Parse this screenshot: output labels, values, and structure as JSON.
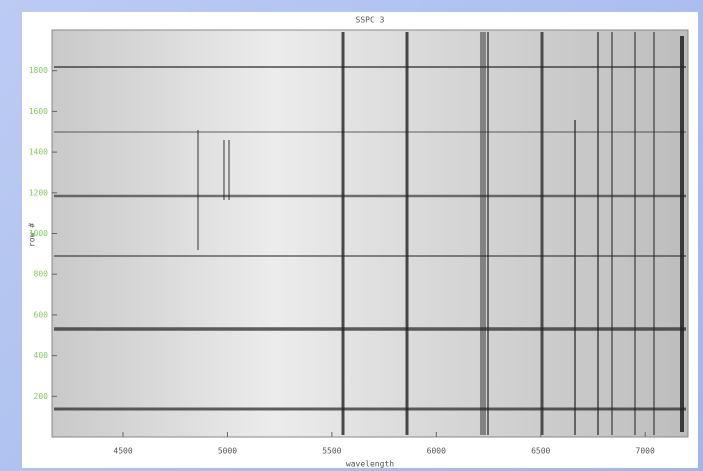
{
  "chart_data": {
    "type": "image",
    "title": "SSPC 3",
    "x_label": "wavelength",
    "y_label": "row #",
    "xlim": [
      4160,
      7205
    ],
    "xticks": [
      4500,
      5000,
      5500,
      6000,
      6500,
      7000
    ],
    "ylim": [
      0,
      2000
    ],
    "yticks": [
      200,
      400,
      600,
      800,
      1000,
      1200,
      1400,
      1600,
      1800
    ],
    "tick_color": "#7ccf5a"
  }
}
